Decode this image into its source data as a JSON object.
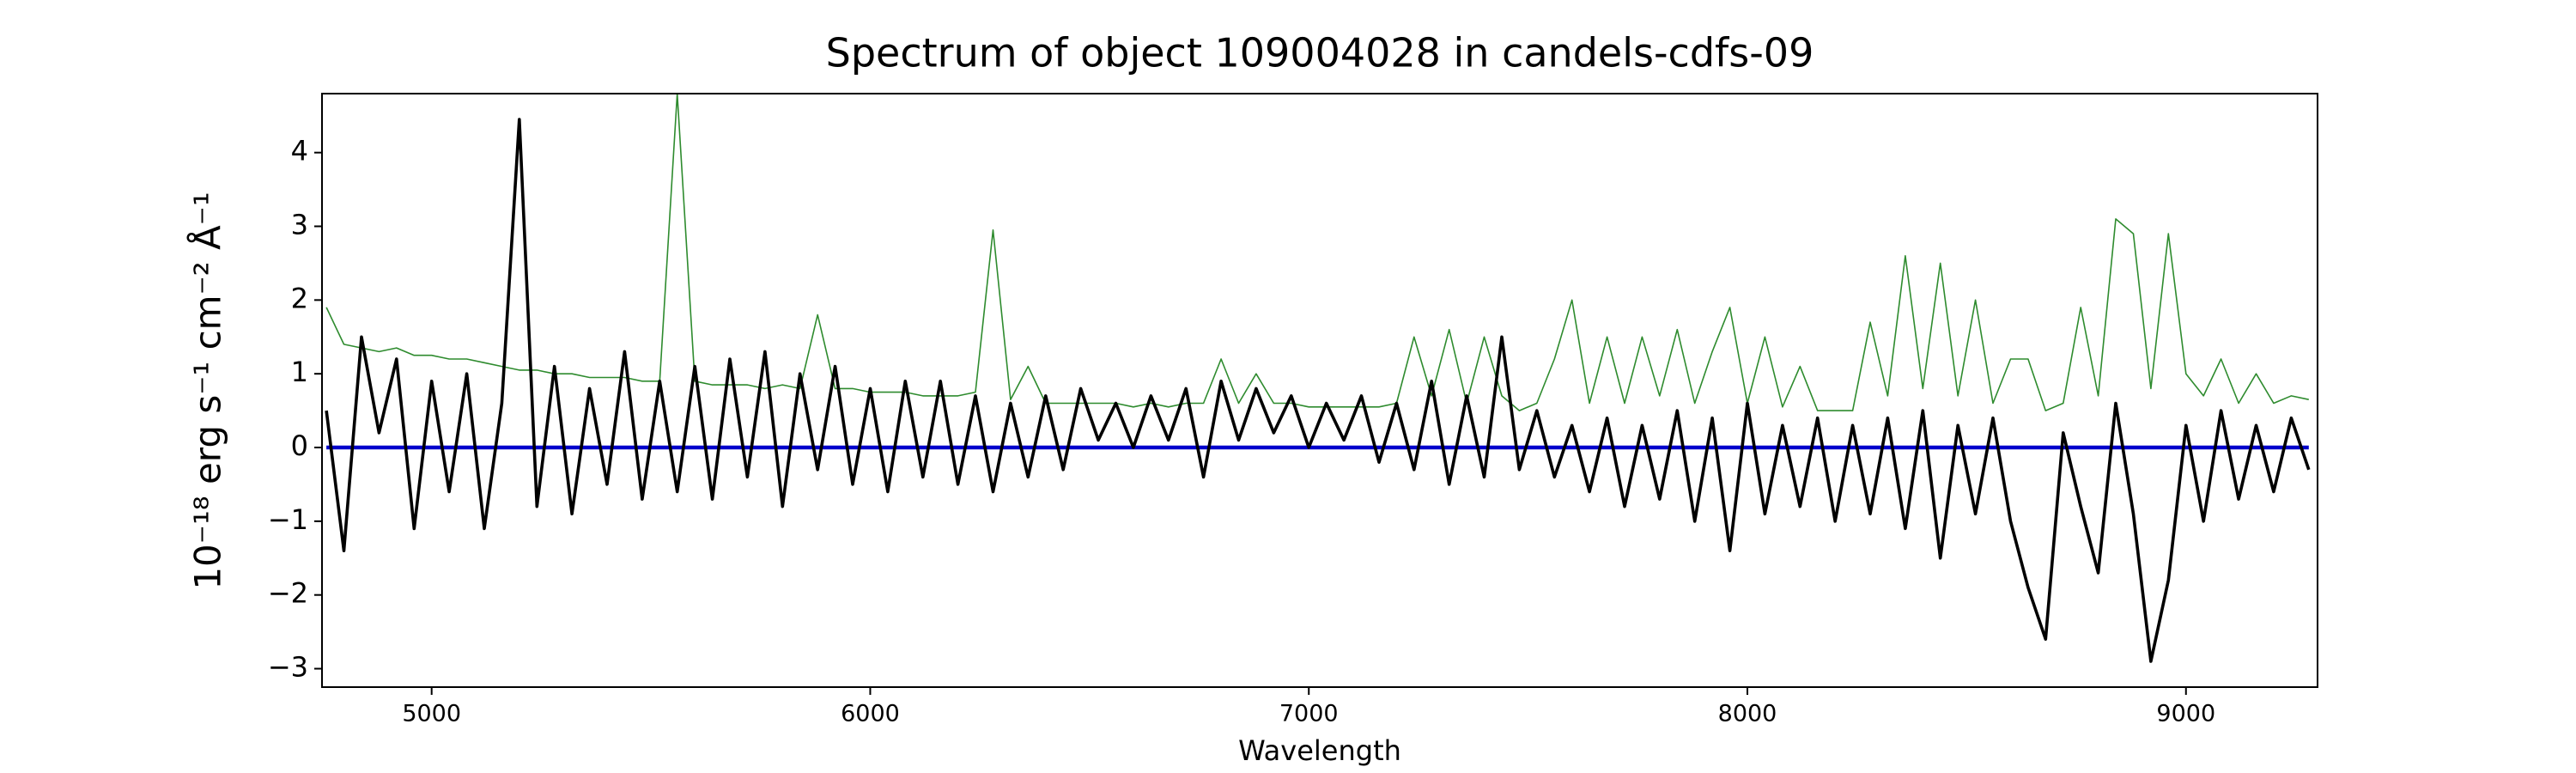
{
  "chart_data": {
    "type": "line",
    "title": "Spectrum of object 109004028 in candels-cdfs-09",
    "x_label": "Wavelength",
    "y_label": "10⁻¹⁸ erg s⁻¹ cm⁻² Å⁻¹",
    "xlim": [
      4750,
      9300
    ],
    "ylim": [
      -3.25,
      4.8
    ],
    "xticks": [
      5000,
      6000,
      7000,
      8000,
      9000
    ],
    "yticks": [
      -3,
      -2,
      -1,
      0,
      1,
      2,
      3,
      4
    ],
    "x": [
      4760,
      4800,
      4840,
      4880,
      4920,
      4960,
      5000,
      5040,
      5080,
      5120,
      5160,
      5200,
      5240,
      5280,
      5320,
      5360,
      5400,
      5440,
      5480,
      5520,
      5560,
      5600,
      5640,
      5680,
      5720,
      5760,
      5800,
      5840,
      5880,
      5920,
      5960,
      6000,
      6040,
      6080,
      6120,
      6160,
      6200,
      6240,
      6280,
      6320,
      6360,
      6400,
      6440,
      6480,
      6520,
      6560,
      6600,
      6640,
      6680,
      6720,
      6760,
      6800,
      6840,
      6880,
      6920,
      6960,
      7000,
      7040,
      7080,
      7120,
      7160,
      7200,
      7240,
      7280,
      7320,
      7360,
      7400,
      7440,
      7480,
      7520,
      7560,
      7600,
      7640,
      7680,
      7720,
      7760,
      7800,
      7840,
      7880,
      7920,
      7960,
      8000,
      8040,
      8080,
      8120,
      8160,
      8200,
      8240,
      8280,
      8320,
      8360,
      8400,
      8440,
      8480,
      8520,
      8560,
      8600,
      8640,
      8680,
      8720,
      8760,
      8800,
      8840,
      8880,
      8920,
      8960,
      9000,
      9040,
      9080,
      9120,
      9160,
      9200,
      9240,
      9280
    ],
    "series": [
      {
        "color": "#2e8b2e",
        "width": 1.6,
        "values": [
          1.9,
          1.4,
          1.35,
          1.3,
          1.35,
          1.25,
          1.25,
          1.2,
          1.2,
          1.15,
          1.1,
          1.05,
          1.05,
          1.0,
          1.0,
          0.95,
          0.95,
          0.95,
          0.9,
          0.9,
          4.8,
          0.9,
          0.85,
          0.85,
          0.85,
          0.8,
          0.85,
          0.8,
          1.8,
          0.8,
          0.8,
          0.75,
          0.75,
          0.75,
          0.7,
          0.7,
          0.7,
          0.75,
          2.95,
          0.65,
          1.1,
          0.6,
          0.6,
          0.6,
          0.6,
          0.6,
          0.55,
          0.6,
          0.55,
          0.6,
          0.6,
          1.2,
          0.6,
          1.0,
          0.6,
          0.6,
          0.55,
          0.55,
          0.55,
          0.55,
          0.55,
          0.6,
          1.5,
          0.7,
          1.6,
          0.6,
          1.5,
          0.7,
          0.5,
          0.6,
          1.2,
          2.0,
          0.6,
          1.5,
          0.6,
          1.5,
          0.7,
          1.6,
          0.6,
          1.3,
          1.9,
          0.6,
          1.5,
          0.55,
          1.1,
          0.5,
          0.5,
          0.5,
          1.7,
          0.7,
          2.6,
          0.8,
          2.5,
          0.7,
          2.0,
          0.6,
          1.2,
          1.2,
          0.5,
          0.6,
          1.9,
          0.7,
          3.1,
          2.9,
          0.8,
          2.9,
          1.0,
          0.7,
          1.2,
          0.6,
          1.0,
          0.6,
          0.7,
          0.65
        ]
      },
      {
        "color": "#0000cc",
        "width": 4.5,
        "values": [
          0,
          0,
          0,
          0,
          0,
          0,
          0,
          0,
          0,
          0,
          0,
          0,
          0,
          0,
          0,
          0,
          0,
          0,
          0,
          0,
          0,
          0,
          0,
          0,
          0,
          0,
          0,
          0,
          0,
          0,
          0,
          0,
          0,
          0,
          0,
          0,
          0,
          0,
          0,
          0,
          0,
          0,
          0,
          0,
          0,
          0,
          0,
          0,
          0,
          0,
          0,
          0,
          0,
          0,
          0,
          0,
          0,
          0,
          0,
          0,
          0,
          0,
          0,
          0,
          0,
          0,
          0,
          0,
          0,
          0,
          0,
          0,
          0,
          0,
          0,
          0,
          0,
          0,
          0,
          0,
          0,
          0,
          0,
          0,
          0,
          0,
          0,
          0,
          0,
          0,
          0,
          0,
          0,
          0,
          0,
          0,
          0,
          0,
          0,
          0,
          0,
          0,
          0,
          0,
          0,
          0,
          0,
          0,
          0,
          0,
          0,
          0,
          0,
          0
        ]
      },
      {
        "color": "#000000",
        "width": 3.6,
        "values": [
          0.5,
          -1.4,
          1.5,
          0.2,
          1.2,
          -1.1,
          0.9,
          -0.6,
          1.0,
          -1.1,
          0.6,
          4.45,
          -0.8,
          1.1,
          -0.9,
          0.8,
          -0.5,
          1.3,
          -0.7,
          0.9,
          -0.6,
          1.1,
          -0.7,
          1.2,
          -0.4,
          1.3,
          -0.8,
          1.0,
          -0.3,
          1.1,
          -0.5,
          0.8,
          -0.6,
          0.9,
          -0.4,
          0.9,
          -0.5,
          0.7,
          -0.6,
          0.6,
          -0.4,
          0.7,
          -0.3,
          0.8,
          0.1,
          0.6,
          0.0,
          0.7,
          0.1,
          0.8,
          -0.4,
          0.9,
          0.1,
          0.8,
          0.2,
          0.7,
          0.0,
          0.6,
          0.1,
          0.7,
          -0.2,
          0.6,
          -0.3,
          0.9,
          -0.5,
          0.7,
          -0.4,
          1.5,
          -0.3,
          0.5,
          -0.4,
          0.3,
          -0.6,
          0.4,
          -0.8,
          0.3,
          -0.7,
          0.5,
          -1.0,
          0.4,
          -1.4,
          0.6,
          -0.9,
          0.3,
          -0.8,
          0.4,
          -1.0,
          0.3,
          -0.9,
          0.4,
          -1.1,
          0.5,
          -1.5,
          0.3,
          -0.9,
          0.4,
          -1.0,
          -1.9,
          -2.6,
          0.2,
          -0.8,
          -1.7,
          0.6,
          -0.9,
          -2.9,
          -1.8,
          0.3,
          -1.0,
          0.5,
          -0.7,
          0.3,
          -0.6,
          0.4,
          -0.3
        ]
      }
    ]
  }
}
